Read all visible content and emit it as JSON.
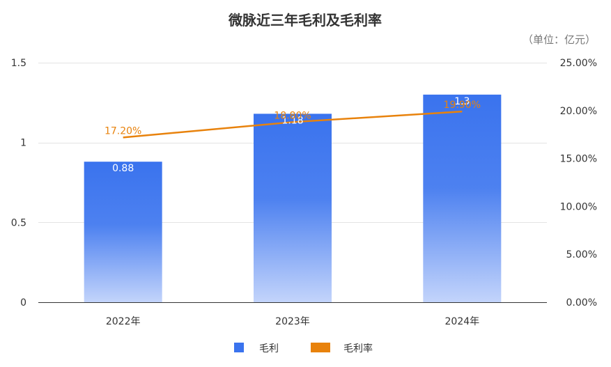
{
  "chart_data": {
    "type": "bar",
    "title": "微脉近三年毛利及毛利率",
    "unit_label": "（单位：亿元）",
    "categories": [
      "2022年",
      "2023年",
      "2024年"
    ],
    "series": [
      {
        "name": "毛利",
        "type": "bar",
        "axis": "left",
        "values": [
          0.88,
          1.18,
          1.3
        ],
        "labels": [
          "0.88",
          "1.18",
          "1.3"
        ]
      },
      {
        "name": "毛利率",
        "type": "line",
        "axis": "right",
        "values": [
          17.2,
          18.8,
          19.9
        ],
        "labels": [
          "17.20%",
          "18.80%",
          "19.90%"
        ]
      }
    ],
    "left_axis": {
      "ylim": [
        0,
        1.5
      ],
      "ticks": [
        0,
        0.5,
        1,
        1.5
      ],
      "tick_labels": [
        "0",
        "0.5",
        "1",
        "1.5"
      ]
    },
    "right_axis": {
      "ylim": [
        0,
        25
      ],
      "ticks": [
        0,
        5,
        10,
        15,
        20,
        25
      ],
      "tick_labels": [
        "0.00%",
        "5.00%",
        "10.00%",
        "15.00%",
        "20.00%",
        "25.00%"
      ]
    },
    "grid": true,
    "legend": "bottom-center",
    "colors": {
      "bar_top": "#3a73ee",
      "bar_bottom": "#c3d4fb",
      "line": "#e8820c",
      "bar_label": "#ffffff",
      "line_label": "#e8820c",
      "legend_bar": "#3a73ee"
    }
  }
}
